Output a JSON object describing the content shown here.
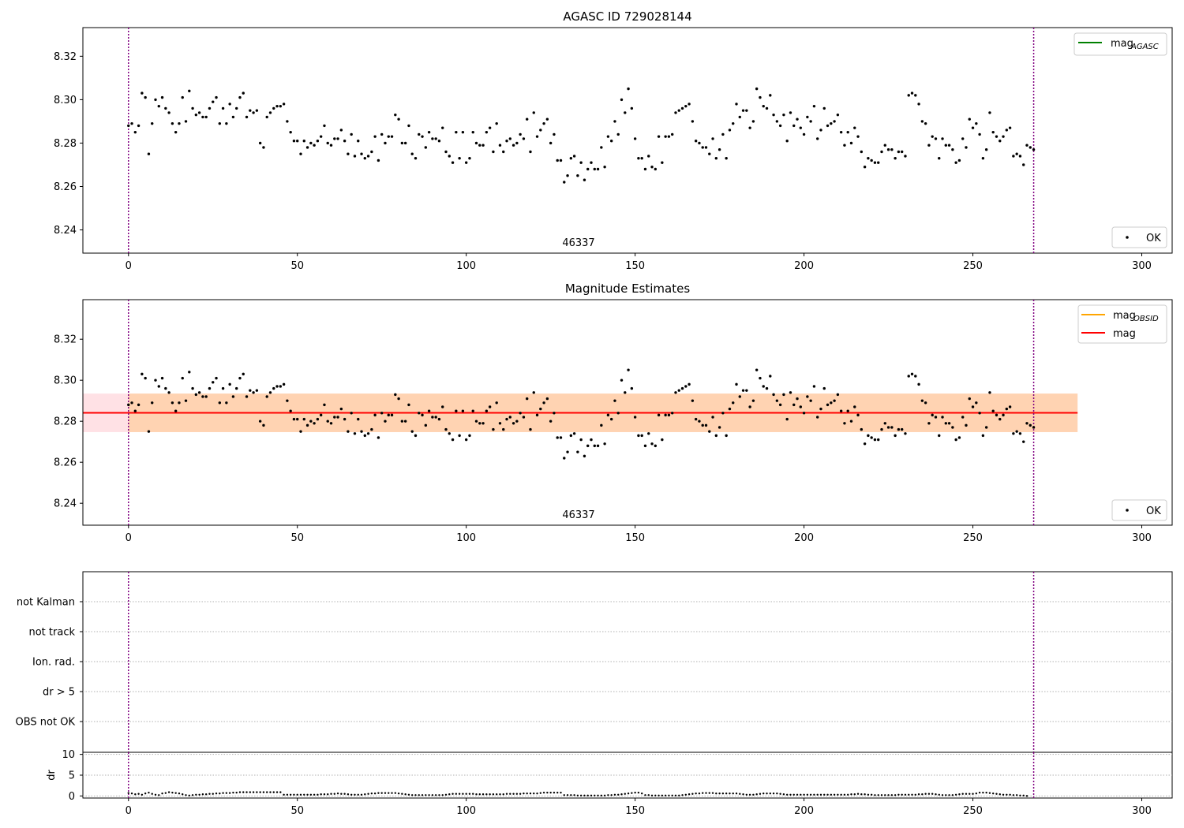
{
  "chart_data": [
    {
      "type": "scatter",
      "title": "AGASC ID 729028144",
      "xlim": [
        -13.5,
        309
      ],
      "ylim": [
        8.2293,
        8.3332
      ],
      "xticks": [
        0,
        50,
        100,
        150,
        200,
        250,
        300
      ],
      "yticks": [
        8.24,
        8.26,
        8.28,
        8.3,
        8.32
      ],
      "vlines": [
        0,
        268
      ],
      "annotation": {
        "text": "46337",
        "x": 133
      },
      "legend_top": {
        "label": "mag",
        "sub": "AGASC",
        "color": "#008000",
        "placement": "top-right"
      },
      "legend_bottom": {
        "label": "OK",
        "placement": "bottom-right"
      },
      "series": [
        {
          "name": "OK",
          "x_start": 0,
          "x_step": 1,
          "values": [
            8.288,
            8.289,
            8.285,
            8.288,
            8.303,
            8.301,
            8.275,
            8.289,
            8.3,
            8.297,
            8.301,
            8.296,
            8.294,
            8.289,
            8.285,
            8.289,
            8.301,
            8.29,
            8.304,
            8.296,
            8.293,
            8.294,
            8.292,
            8.292,
            8.296,
            8.299,
            8.301,
            8.289,
            8.296,
            8.289,
            8.298,
            8.292,
            8.296,
            8.301,
            8.303,
            8.292,
            8.295,
            8.294,
            8.295,
            8.28,
            8.278,
            8.292,
            8.294,
            8.296,
            8.297,
            8.297,
            8.298,
            8.29,
            8.285,
            8.281,
            8.281,
            8.275,
            8.281,
            8.278,
            8.28,
            8.279,
            8.281,
            8.283,
            8.288,
            8.28,
            8.279,
            8.282,
            8.282,
            8.286,
            8.281,
            8.275,
            8.284,
            8.274,
            8.281,
            8.275,
            8.273,
            8.274,
            8.276,
            8.283,
            8.272,
            8.284,
            8.28,
            8.283,
            8.283,
            8.293,
            8.291,
            8.28,
            8.28,
            8.288,
            8.275,
            8.273,
            8.284,
            8.283,
            8.278,
            8.285,
            8.282,
            8.282,
            8.281,
            8.287,
            8.276,
            8.274,
            8.271,
            8.285,
            8.273,
            8.285,
            8.271,
            8.273,
            8.285,
            8.28,
            8.279,
            8.279,
            8.285,
            8.287,
            8.276,
            8.289,
            8.279,
            8.276,
            8.281,
            8.282,
            8.279,
            8.28,
            8.284,
            8.282,
            8.291,
            8.276,
            8.294,
            8.283,
            8.286,
            8.289,
            8.291,
            8.28,
            8.284,
            8.272,
            8.272,
            8.262,
            8.265,
            8.273,
            8.274,
            8.265,
            8.271,
            8.263,
            8.268,
            8.271,
            8.268,
            8.268,
            8.278,
            8.269,
            8.283,
            8.281,
            8.29,
            8.284,
            8.3,
            8.294,
            8.305,
            8.296,
            8.282,
            8.273,
            8.273,
            8.268,
            8.274,
            8.269,
            8.268,
            8.283,
            8.271,
            8.283,
            8.283,
            8.284,
            8.294,
            8.295,
            8.296,
            8.297,
            8.298,
            8.29,
            8.281,
            8.28,
            8.278,
            8.278,
            8.275,
            8.282,
            8.273,
            8.277,
            8.284,
            8.273,
            8.286,
            8.289,
            8.298,
            8.292,
            8.295,
            8.295,
            8.287,
            8.29,
            8.305,
            8.301,
            8.297,
            8.296,
            8.302,
            8.293,
            8.29,
            8.288,
            8.293,
            8.281,
            8.294,
            8.288,
            8.291,
            8.287,
            8.284,
            8.292,
            8.29,
            8.297,
            8.282,
            8.286,
            8.296,
            8.288,
            8.289,
            8.29,
            8.293,
            8.285,
            8.279,
            8.285,
            8.28,
            8.287,
            8.283,
            8.276,
            8.269,
            8.273,
            8.272,
            8.271,
            8.271,
            8.276,
            8.279,
            8.277,
            8.277,
            8.273,
            8.276,
            8.276,
            8.274,
            8.302,
            8.303,
            8.302,
            8.298,
            8.29,
            8.289,
            8.279,
            8.283,
            8.282,
            8.273,
            8.282,
            8.279,
            8.279,
            8.277,
            8.271,
            8.272,
            8.282,
            8.278,
            8.291,
            8.287,
            8.289,
            8.284,
            8.273,
            8.277,
            8.294,
            8.285,
            8.283,
            8.281,
            8.283,
            8.286,
            8.287,
            8.274,
            8.275,
            8.274,
            8.27,
            8.279,
            8.278,
            8.277
          ]
        }
      ]
    },
    {
      "type": "scatter",
      "title": "Magnitude Estimates",
      "xlim": [
        -13.5,
        309
      ],
      "ylim": [
        8.2293,
        8.3393
      ],
      "xticks": [
        0,
        50,
        100,
        150,
        200,
        250,
        300
      ],
      "yticks": [
        8.24,
        8.26,
        8.28,
        8.3,
        8.32
      ],
      "vlines": [
        0,
        268
      ],
      "annotation": {
        "text": "46337",
        "x": 133
      },
      "bands": [
        {
          "x": [
            -13.5,
            281
          ],
          "y": [
            8.2747,
            8.2935
          ],
          "color": "#ff9aaa",
          "opacity": 0.3
        },
        {
          "x": [
            0,
            281
          ],
          "y": [
            8.2747,
            8.2935
          ],
          "color": "#ffa500",
          "opacity": 0.22
        }
      ],
      "hlines": [
        {
          "x": [
            -13.5,
            281
          ],
          "y": 8.2841,
          "color": "#ff0000"
        }
      ],
      "legend_top": {
        "items": [
          {
            "label": "mag",
            "sub": "OBSID",
            "color": "#ffa500"
          },
          {
            "label": "mag",
            "sub": "",
            "color": "#ff0000"
          }
        ],
        "placement": "top-right"
      },
      "legend_bottom": {
        "label": "OK",
        "placement": "bottom-right"
      },
      "series": [
        {
          "name": "OK",
          "same_as_chart": 0
        }
      ]
    },
    {
      "type": "categorical_flags",
      "categories": [
        "not Kalman",
        "not track",
        "Ion. rad.",
        "dr > 5",
        "OBS not OK"
      ],
      "xlim": [
        -13.5,
        309
      ],
      "vlines": [
        0,
        268
      ]
    },
    {
      "type": "scatter",
      "ylabel": "dr",
      "xlim": [
        -13.5,
        309
      ],
      "ylim": [
        -0.5,
        10.5
      ],
      "xticks": [
        0,
        50,
        100,
        150,
        200,
        250,
        300
      ],
      "yticks": [
        0,
        5,
        10
      ],
      "vlines": [
        0,
        268
      ],
      "series": [
        {
          "name": "dr",
          "x_start": 0,
          "x_step": 1,
          "values": [
            0.7,
            0.6,
            0.4,
            0.5,
            0.3,
            0.6,
            0.8,
            0.5,
            0.3,
            0.2,
            0.6,
            0.7,
            0.9,
            0.8,
            0.7,
            0.6,
            0.4,
            0.2,
            0.1,
            0.2,
            0.3,
            0.3,
            0.4,
            0.4,
            0.5,
            0.5,
            0.6,
            0.6,
            0.7,
            0.7,
            0.7,
            0.8,
            0.8,
            0.9,
            0.9,
            0.9,
            0.9,
            0.9,
            0.9,
            0.9,
            0.9,
            0.9,
            0.9,
            0.9,
            0.9,
            0.9,
            0.3,
            0.3,
            0.3,
            0.3,
            0.3,
            0.3,
            0.3,
            0.3,
            0.3,
            0.3,
            0.3,
            0.4,
            0.4,
            0.4,
            0.5,
            0.5,
            0.6,
            0.5,
            0.5,
            0.4,
            0.3,
            0.3,
            0.3,
            0.3,
            0.4,
            0.5,
            0.6,
            0.6,
            0.7,
            0.7,
            0.7,
            0.7,
            0.7,
            0.7,
            0.6,
            0.5,
            0.4,
            0.3,
            0.2,
            0.2,
            0.2,
            0.2,
            0.2,
            0.2,
            0.2,
            0.2,
            0.2,
            0.2,
            0.3,
            0.4,
            0.5,
            0.5,
            0.5,
            0.5,
            0.5,
            0.5,
            0.5,
            0.4,
            0.4,
            0.4,
            0.4,
            0.4,
            0.4,
            0.4,
            0.4,
            0.4,
            0.5,
            0.5,
            0.5,
            0.5,
            0.5,
            0.6,
            0.6,
            0.6,
            0.6,
            0.6,
            0.7,
            0.8,
            0.8,
            0.8,
            0.8,
            0.8,
            0.8,
            0.2,
            0.2,
            0.2,
            0.2,
            0.1,
            0.1,
            0.1,
            0.1,
            0.1,
            0.1,
            0.1,
            0.1,
            0.1,
            0.2,
            0.2,
            0.3,
            0.3,
            0.4,
            0.5,
            0.6,
            0.7,
            0.8,
            0.8,
            0.6,
            0.2,
            0.2,
            0.1,
            0.1,
            0.1,
            0.1,
            0.1,
            0.1,
            0.1,
            0.1,
            0.1,
            0.2,
            0.3,
            0.4,
            0.5,
            0.6,
            0.6,
            0.7,
            0.7,
            0.7,
            0.7,
            0.6,
            0.6,
            0.6,
            0.6,
            0.6,
            0.6,
            0.6,
            0.5,
            0.4,
            0.3,
            0.3,
            0.3,
            0.4,
            0.5,
            0.6,
            0.6,
            0.6,
            0.6,
            0.6,
            0.5,
            0.4,
            0.3,
            0.3,
            0.3,
            0.3,
            0.3,
            0.3,
            0.3,
            0.3,
            0.3,
            0.3,
            0.3,
            0.3,
            0.3,
            0.3,
            0.3,
            0.3,
            0.3,
            0.3,
            0.3,
            0.4,
            0.4,
            0.5,
            0.4,
            0.4,
            0.3,
            0.3,
            0.2,
            0.2,
            0.2,
            0.2,
            0.2,
            0.2,
            0.2,
            0.3,
            0.3,
            0.3,
            0.3,
            0.3,
            0.3,
            0.4,
            0.4,
            0.5,
            0.5,
            0.5,
            0.4,
            0.3,
            0.2,
            0.2,
            0.2,
            0.2,
            0.3,
            0.4,
            0.5,
            0.5,
            0.5,
            0.5,
            0.6,
            0.8,
            0.8,
            0.8,
            0.7,
            0.6,
            0.5,
            0.4,
            0.3,
            0.3,
            0.3,
            0.2,
            0.2,
            0.1,
            0.1,
            0.0
          ]
        }
      ]
    }
  ]
}
